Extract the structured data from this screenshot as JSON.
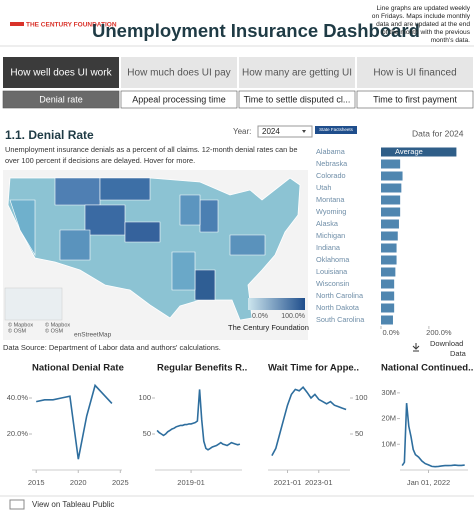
{
  "header": {
    "logo": "THE CENTURY FOUNDATION",
    "title": "Unemployment Insurance Dashboard",
    "note": [
      "Line graphs are updated weekly",
      "on Fridays. Maps include monthly",
      "data and are updated at the end",
      "of the month with the previous",
      "month's data."
    ]
  },
  "tabs": [
    "How well does UI work",
    "How much does UI pay",
    "How many are getting UI",
    "How is UI financed"
  ],
  "subtabs": [
    "Denial rate",
    "Appeal processing time",
    "Time to settle disputed cl...",
    "Time to first payment"
  ],
  "section": {
    "title": "1.1. Denial Rate",
    "year_label": "Year:",
    "year": "2024",
    "button": "State Factsheets",
    "description": [
      "Unemployment insurance denials as a percent of all claims. 12-month denial rates can be",
      "over 100 percent if decisions are delayed. Hover for more."
    ],
    "data_for": "Data for 2024"
  },
  "map": {
    "legend": [
      "0.0%",
      "100.0%"
    ],
    "credit": "The Century Foundation",
    "attribution": [
      "© Mapbox",
      "© OSM",
      "© Mapbox",
      "© OSM",
      "enStreetMap"
    ]
  },
  "source": "Data Source: Department of Labor data and authors' calculations.",
  "download": [
    "Download",
    "Data"
  ],
  "footer": "View on Tableau Public",
  "chart_data": [
    {
      "type": "bar",
      "orientation": "horizontal",
      "categories": [
        "Alabama",
        "Nebraska",
        "Colorado",
        "Utah",
        "Montana",
        "Wyoming",
        "Alaska",
        "Michigan",
        "Indiana",
        "Oklahoma",
        "Louisiana",
        "Wisconsin",
        "North Carolina",
        "North Dakota",
        "South Carolina"
      ],
      "values": [
        300,
        80,
        90,
        85,
        80,
        80,
        75,
        70,
        65,
        65,
        60,
        55,
        55,
        55,
        50
      ],
      "color": "#4f86b0",
      "average": {
        "label": "Average",
        "value": 315,
        "color": "#2f5e88"
      },
      "xlim": [
        0,
        330
      ],
      "xticks": [
        {
          "value": 0,
          "label": "0.0%"
        },
        {
          "value": 200,
          "label": "200.0%"
        }
      ]
    },
    {
      "type": "line",
      "title": "National Denial Rate",
      "x": [
        2015,
        2016,
        2017,
        2018,
        2019,
        2020,
        2021,
        2022,
        2023,
        2024
      ],
      "values": [
        38,
        39,
        39,
        40,
        41,
        6,
        30,
        47,
        42,
        37
      ],
      "color": "#2e6e9e",
      "xlim": [
        2014.5,
        2025.2
      ],
      "ylim": [
        0,
        50
      ],
      "xticks": [
        2015,
        2020,
        2025
      ],
      "yticks": [
        {
          "value": 20,
          "label": "20.0%"
        },
        {
          "value": 40,
          "label": "40.0%"
        }
      ]
    },
    {
      "type": "line",
      "title": "Regular Benefits R..",
      "x": [
        "2015-01",
        "2015-04",
        "2015-07",
        "2015-10",
        "2016-01",
        "2016-04",
        "2016-07",
        "2016-10",
        "2017-01",
        "2017-04",
        "2017-07",
        "2017-10",
        "2018-01",
        "2018-04",
        "2018-07",
        "2018-10",
        "2019-01",
        "2019-04",
        "2019-07",
        "2019-10",
        "2020-01",
        "2020-04",
        "2020-07",
        "2020-10",
        "2021-01",
        "2021-04",
        "2021-07",
        "2021-10",
        "2022-01",
        "2022-04",
        "2022-07",
        "2022-10",
        "2023-01",
        "2023-04",
        "2023-07",
        "2023-10",
        "2024-01",
        "2024-04",
        "2024-07",
        "2024-10"
      ],
      "values": [
        55,
        52,
        50,
        48,
        50,
        53,
        55,
        57,
        58,
        60,
        61,
        62,
        62,
        63,
        63,
        64,
        64,
        65,
        66,
        68,
        112,
        70,
        40,
        30,
        28,
        30,
        32,
        33,
        34,
        36,
        38,
        36,
        35,
        34,
        36,
        38,
        37,
        36,
        35,
        36
      ],
      "color": "#2e6e9e",
      "xlim": [
        "2014-10",
        "2025-01"
      ],
      "ylim": [
        0,
        125
      ],
      "xticks": [
        "2019-01"
      ],
      "yticks": [
        50,
        100
      ]
    },
    {
      "type": "line",
      "title": "Wait Time for Appe..",
      "x": [
        "2020-01",
        "2020-04",
        "2020-07",
        "2020-10",
        "2021-01",
        "2021-04",
        "2021-07",
        "2021-10",
        "2022-01",
        "2022-04",
        "2022-07",
        "2022-10",
        "2023-01",
        "2023-04",
        "2023-07",
        "2023-10",
        "2024-01",
        "2024-04",
        "2024-07",
        "2024-10"
      ],
      "values": [
        20,
        30,
        50,
        70,
        90,
        105,
        112,
        110,
        115,
        108,
        100,
        105,
        98,
        95,
        92,
        95,
        90,
        88,
        86,
        84
      ],
      "color": "#2e6e9e",
      "xlim": [
        "2019-10",
        "2025-01"
      ],
      "ylim": [
        0,
        125
      ],
      "y_axis_side": "right",
      "xticks": [
        "2021-01",
        "2023-01"
      ],
      "yticks": [
        50,
        100
      ]
    },
    {
      "type": "line",
      "title": "National Continued..",
      "x": [
        "2020-01",
        "2020-03",
        "2020-05",
        "2020-07",
        "2020-09",
        "2020-11",
        "2021-01",
        "2021-04",
        "2021-07",
        "2021-10",
        "2022-01",
        "2022-04",
        "2022-07",
        "2022-10",
        "2023-01",
        "2023-04",
        "2023-07",
        "2023-10",
        "2024-01",
        "2024-04",
        "2024-07",
        "2024-10"
      ],
      "values": [
        1700000,
        3000000,
        26000000,
        17000000,
        13000000,
        8000000,
        6000000,
        5000000,
        3500000,
        2500000,
        2000000,
        1400000,
        1300000,
        1400000,
        1600000,
        1700000,
        1700000,
        1800000,
        1900000,
        1800000,
        1800000,
        1900000
      ],
      "color": "#2e6e9e",
      "xlim": [
        "2019-11",
        "2025-01"
      ],
      "ylim": [
        0,
        35000000
      ],
      "xticks": [
        {
          "value": "2022-01-01",
          "label": "Jan 01, 2022"
        }
      ],
      "yticks": [
        {
          "value": 10000000,
          "label": "10M"
        },
        {
          "value": 20000000,
          "label": "20M"
        },
        {
          "value": 30000000,
          "label": "30M"
        }
      ]
    }
  ]
}
